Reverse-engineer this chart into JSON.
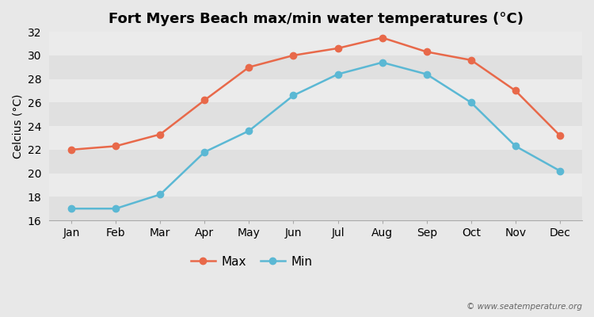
{
  "title": "Fort Myers Beach max/min water temperatures (°C)",
  "ylabel": "Celcius (°C)",
  "months": [
    "Jan",
    "Feb",
    "Mar",
    "Apr",
    "May",
    "Jun",
    "Jul",
    "Aug",
    "Sep",
    "Oct",
    "Nov",
    "Dec"
  ],
  "max_temps": [
    22.0,
    22.3,
    23.3,
    26.2,
    29.0,
    30.0,
    30.6,
    31.5,
    30.3,
    29.6,
    27.0,
    23.2
  ],
  "min_temps": [
    17.0,
    17.0,
    18.2,
    21.8,
    23.6,
    26.6,
    28.4,
    29.4,
    28.4,
    26.0,
    22.3,
    20.2
  ],
  "max_color": "#e8694a",
  "min_color": "#5bb8d4",
  "marker_style": "o",
  "marker_size": 6,
  "line_width": 1.8,
  "ylim": [
    16,
    32
  ],
  "yticks": [
    16,
    18,
    20,
    22,
    24,
    26,
    28,
    30,
    32
  ],
  "band_colors": [
    "#e0e0e0",
    "#ebebeb"
  ],
  "outer_bg": "#e8e8e8",
  "legend_labels": [
    "Max",
    "Min"
  ],
  "watermark": "© www.seatemperature.org",
  "title_fontsize": 13,
  "axis_fontsize": 10,
  "tick_fontsize": 10
}
